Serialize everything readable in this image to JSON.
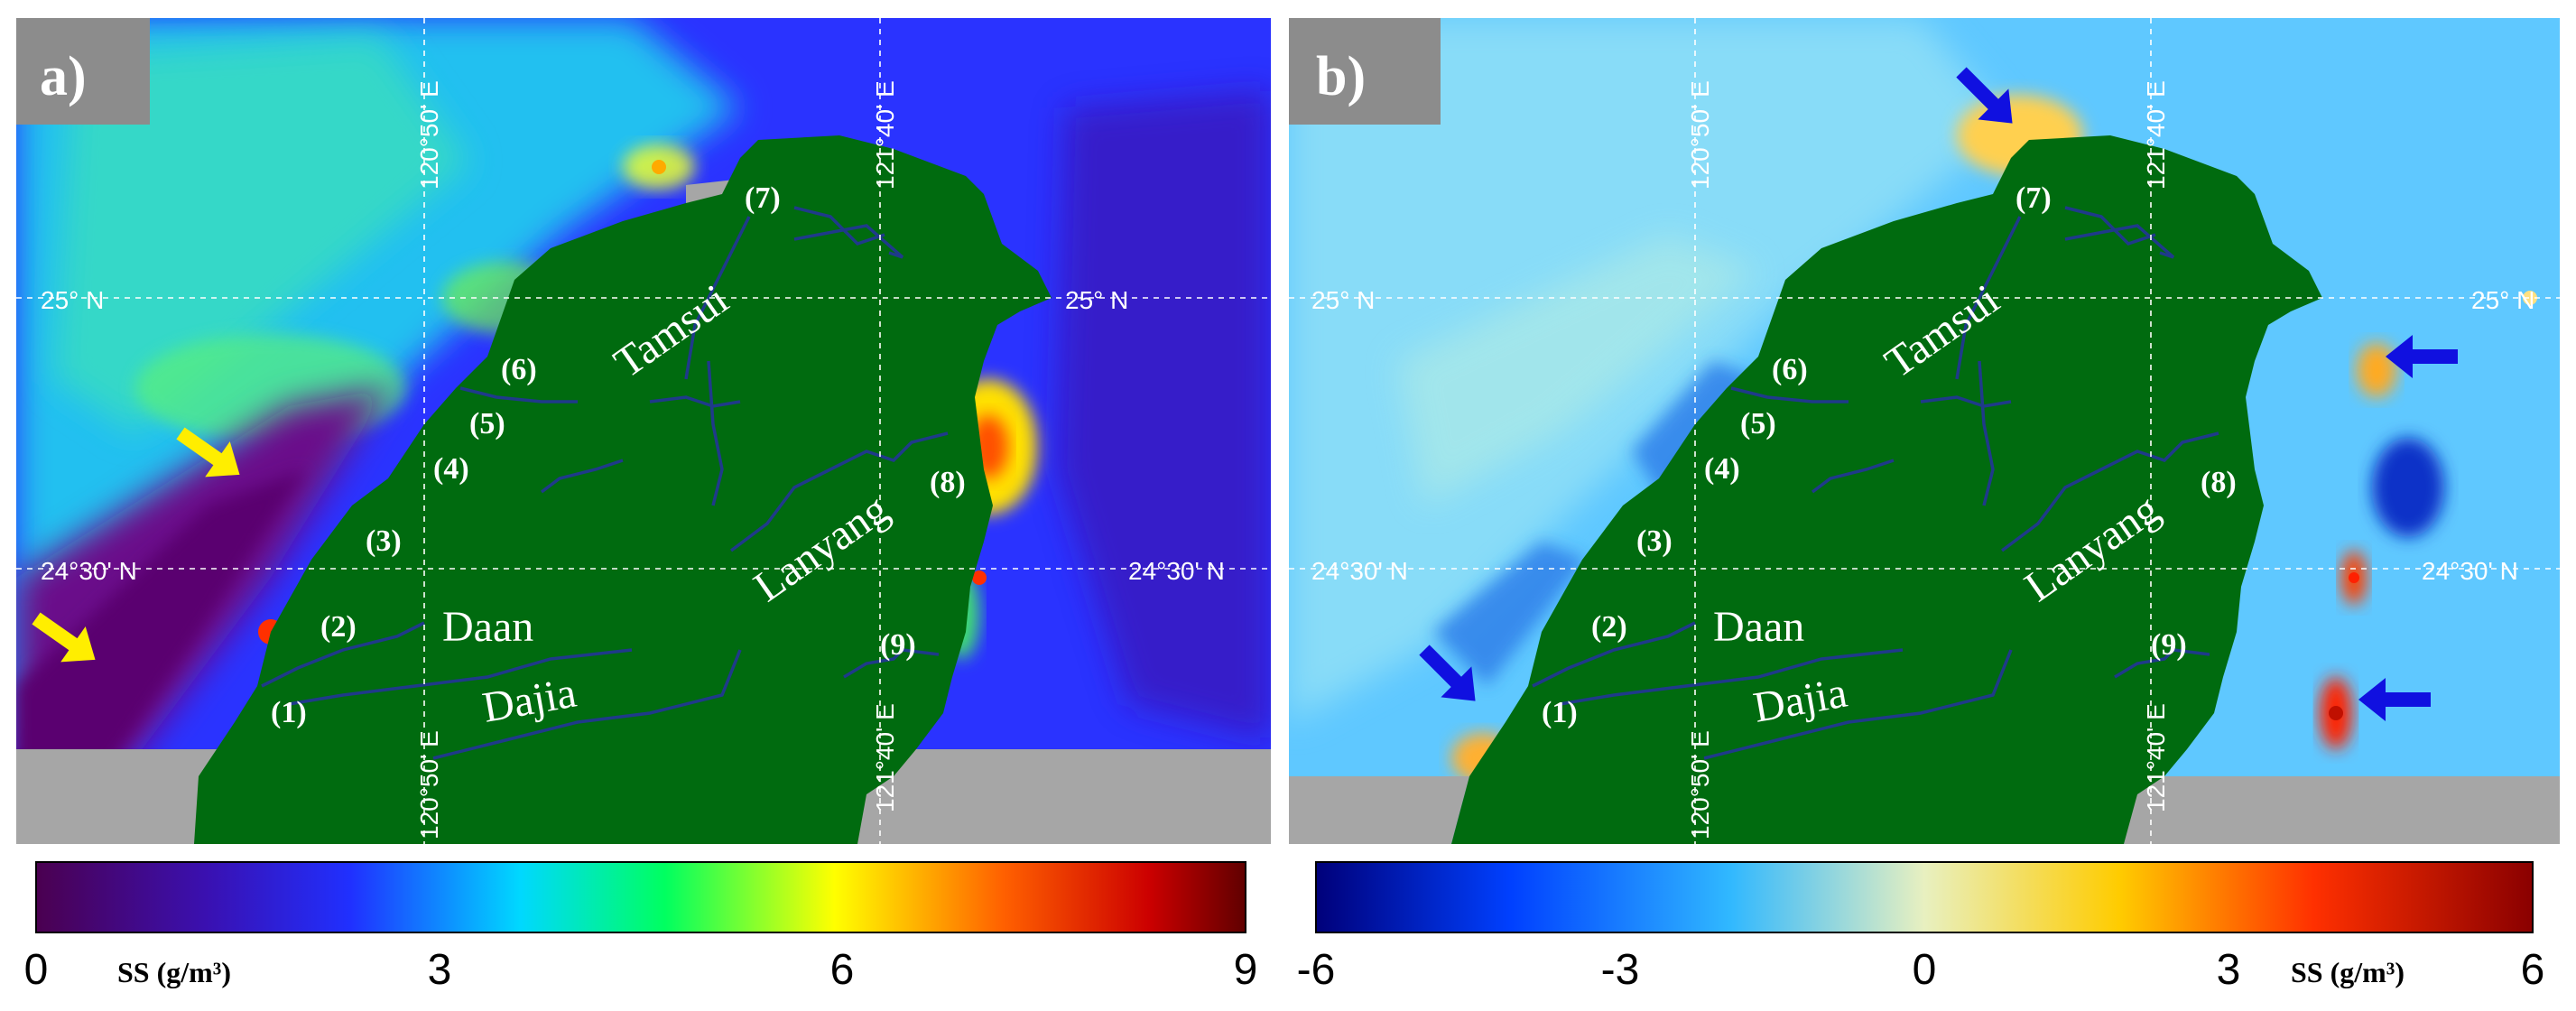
{
  "panels": [
    {
      "label": "a)",
      "gridlines": {
        "lon_top_left": "120°50' E",
        "lon_top_right": "121°40' E",
        "lon_bottom_left": "120°50' E",
        "lon_bottom_right": "121°40' E",
        "lat_upper_left": "25° N",
        "lat_upper_right": "25° N",
        "lat_lower_left": "24°30' N",
        "lat_lower_right": "24°30' N"
      },
      "rivers": {
        "tamsui": "Tamsui",
        "lanyang": "Lanyang",
        "daan": "Daan",
        "dajia": "Dajia"
      },
      "river_numbers": [
        "(1)",
        "(2)",
        "(3)",
        "(4)",
        "(5)",
        "(6)",
        "(7)",
        "(8)",
        "(9)"
      ],
      "arrows": {
        "color": "#ffee00",
        "count": 2
      },
      "colorbar": {
        "ticks": [
          "0",
          "3",
          "6",
          "9"
        ],
        "unit_label": "SS (g/m³)",
        "scale": "sequential 0 to 9",
        "colors": [
          "#4b0050",
          "#2020ff",
          "#00e0ff",
          "#00ff40",
          "#ffff00",
          "#ff6000",
          "#cc0000",
          "#600000"
        ]
      }
    },
    {
      "label": "b)",
      "gridlines": {
        "lon_top_left": "120°50' E",
        "lon_top_right": "121°40' E",
        "lon_bottom_left": "120°50' E",
        "lon_bottom_right": "121°40' E",
        "lat_upper_left": "25° N",
        "lat_upper_right": "25° N",
        "lat_lower_left": "24°30' N",
        "lat_lower_right": "24°30' N"
      },
      "rivers": {
        "tamsui": "Tamsui",
        "lanyang": "Lanyang",
        "daan": "Daan",
        "dajia": "Dajia"
      },
      "river_numbers": [
        "(1)",
        "(2)",
        "(3)",
        "(4)",
        "(5)",
        "(6)",
        "(7)",
        "(8)",
        "(9)"
      ],
      "arrows": {
        "color": "#1010e0",
        "count": 4
      },
      "colorbar": {
        "ticks": [
          "-6",
          "-3",
          "0",
          "3",
          "6"
        ],
        "unit_label": "SS (g/m³)",
        "scale": "diverging -6 to 6",
        "colors": [
          "#00007a",
          "#0050ff",
          "#40c8ff",
          "#e8f0c0",
          "#ffb000",
          "#ff3000",
          "#8a0000"
        ]
      }
    }
  ],
  "colors": {
    "land": "#006b0f",
    "no_data": "#a6a6a6",
    "label_box": "#8c8c8c",
    "river_line": "#1f3a8a"
  }
}
